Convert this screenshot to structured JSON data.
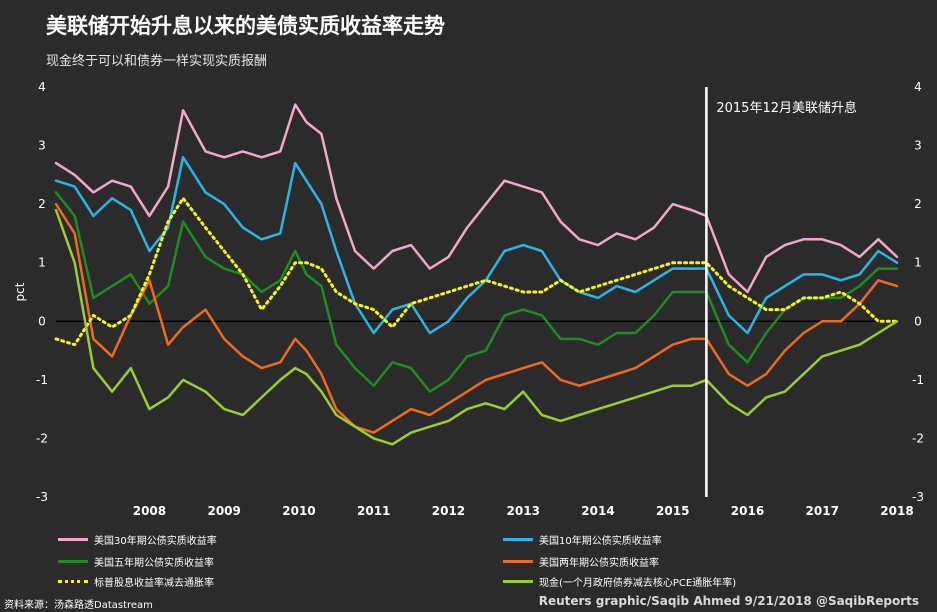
{
  "header": {
    "title": "美联储开始升息以来的美债实质收益率走势",
    "subtitle": "现金终于可以和债券一样实现实质报酬"
  },
  "footer": {
    "source": "资料来源：汤森路透Datastream",
    "credit": "Reuters graphic/Saqib Ahmed 9/21/2018 @SaqibReports"
  },
  "colors": {
    "background": "#2b2b2b",
    "zero_line": "#000000",
    "annotation_line": "#ffffff"
  },
  "chart_data": {
    "type": "line",
    "title": "美联储开始升息以来的美债实质收益率走势",
    "xlabel": "",
    "ylabel": "pct",
    "ylim": [
      -3,
      4
    ],
    "xlim": [
      2007.25,
      2018.5
    ],
    "y_ticks": [
      "4",
      "3",
      "2",
      "1",
      "0",
      "-1",
      "-2",
      "-3"
    ],
    "x_ticks": [
      "2008",
      "2009",
      "2010",
      "2011",
      "2012",
      "2013",
      "2014",
      "2015",
      "2016",
      "2017",
      "2018"
    ],
    "grid": false,
    "legend_position": "bottom",
    "annotation": {
      "x": 2015.95,
      "label": "2015年12月美联储升息"
    },
    "series": [
      {
        "name": "美国30年期公债实质收益率",
        "color": "#f4a6c8",
        "style": "solid",
        "x": [
          2007.25,
          2007.5,
          2007.75,
          2008.0,
          2008.25,
          2008.5,
          2008.75,
          2008.95,
          2009.25,
          2009.5,
          2009.75,
          2010.0,
          2010.25,
          2010.45,
          2010.6,
          2010.8,
          2011.0,
          2011.25,
          2011.5,
          2011.75,
          2012.0,
          2012.25,
          2012.5,
          2012.75,
          2013.0,
          2013.25,
          2013.5,
          2013.75,
          2014.0,
          2014.25,
          2014.5,
          2014.75,
          2015.0,
          2015.25,
          2015.5,
          2015.75,
          2015.95,
          2016.25,
          2016.5,
          2016.75,
          2017.0,
          2017.25,
          2017.5,
          2017.75,
          2018.0,
          2018.25,
          2018.5
        ],
        "y": [
          2.7,
          2.5,
          2.2,
          2.4,
          2.3,
          1.8,
          2.3,
          3.6,
          2.9,
          2.8,
          2.9,
          2.8,
          2.9,
          3.7,
          3.4,
          3.2,
          2.1,
          1.2,
          0.9,
          1.2,
          1.3,
          0.9,
          1.1,
          1.6,
          2.0,
          2.4,
          2.3,
          2.2,
          1.7,
          1.4,
          1.3,
          1.5,
          1.4,
          1.6,
          2.0,
          1.9,
          1.8,
          0.8,
          0.5,
          1.1,
          1.3,
          1.4,
          1.4,
          1.3,
          1.1,
          1.4,
          1.1
        ]
      },
      {
        "name": "美国10年期公债实质收益率",
        "color": "#29b6e6",
        "style": "solid",
        "x": [
          2007.25,
          2007.5,
          2007.75,
          2008.0,
          2008.25,
          2008.5,
          2008.75,
          2008.95,
          2009.25,
          2009.5,
          2009.75,
          2010.0,
          2010.25,
          2010.45,
          2010.6,
          2010.8,
          2011.0,
          2011.25,
          2011.5,
          2011.75,
          2012.0,
          2012.25,
          2012.5,
          2012.75,
          2013.0,
          2013.25,
          2013.5,
          2013.75,
          2014.0,
          2014.25,
          2014.5,
          2014.75,
          2015.0,
          2015.25,
          2015.5,
          2015.75,
          2015.95,
          2016.25,
          2016.5,
          2016.75,
          2017.0,
          2017.25,
          2017.5,
          2017.75,
          2018.0,
          2018.25,
          2018.5
        ],
        "y": [
          2.4,
          2.3,
          1.8,
          2.1,
          1.9,
          1.2,
          1.6,
          2.8,
          2.2,
          2.0,
          1.6,
          1.4,
          1.5,
          2.7,
          2.4,
          2.0,
          1.2,
          0.3,
          -0.2,
          0.2,
          0.3,
          -0.2,
          0.0,
          0.4,
          0.7,
          1.2,
          1.3,
          1.2,
          0.7,
          0.5,
          0.4,
          0.6,
          0.5,
          0.7,
          0.9,
          0.9,
          0.9,
          0.1,
          -0.2,
          0.4,
          0.6,
          0.8,
          0.8,
          0.7,
          0.8,
          1.2,
          1.0
        ]
      },
      {
        "name": "美国五年期公债实质收益率",
        "color": "#1e8c1e",
        "style": "solid",
        "x": [
          2007.25,
          2007.5,
          2007.75,
          2008.0,
          2008.25,
          2008.5,
          2008.75,
          2008.95,
          2009.25,
          2009.5,
          2009.75,
          2010.0,
          2010.25,
          2010.45,
          2010.6,
          2010.8,
          2011.0,
          2011.25,
          2011.5,
          2011.75,
          2012.0,
          2012.25,
          2012.5,
          2012.75,
          2013.0,
          2013.25,
          2013.5,
          2013.75,
          2014.0,
          2014.25,
          2014.5,
          2014.75,
          2015.0,
          2015.25,
          2015.5,
          2015.75,
          2015.95,
          2016.25,
          2016.5,
          2016.75,
          2017.0,
          2017.25,
          2017.5,
          2017.75,
          2018.0,
          2018.25,
          2018.5
        ],
        "y": [
          2.2,
          1.8,
          0.4,
          0.6,
          0.8,
          0.3,
          0.6,
          1.7,
          1.1,
          0.9,
          0.8,
          0.5,
          0.7,
          1.2,
          0.8,
          0.6,
          -0.4,
          -0.8,
          -1.1,
          -0.7,
          -0.8,
          -1.2,
          -1.0,
          -0.6,
          -0.5,
          0.1,
          0.2,
          0.1,
          -0.3,
          -0.3,
          -0.4,
          -0.2,
          -0.2,
          0.1,
          0.5,
          0.5,
          0.5,
          -0.4,
          -0.7,
          -0.2,
          0.2,
          0.4,
          0.4,
          0.4,
          0.6,
          0.9,
          0.9
        ]
      },
      {
        "name": "美国两年期公债实质收益率",
        "color": "#f06a1e",
        "style": "solid",
        "x": [
          2007.25,
          2007.5,
          2007.75,
          2008.0,
          2008.25,
          2008.5,
          2008.75,
          2008.95,
          2009.25,
          2009.5,
          2009.75,
          2010.0,
          2010.25,
          2010.45,
          2010.6,
          2010.8,
          2011.0,
          2011.25,
          2011.5,
          2011.75,
          2012.0,
          2012.25,
          2012.5,
          2012.75,
          2013.0,
          2013.25,
          2013.5,
          2013.75,
          2014.0,
          2014.25,
          2014.5,
          2014.75,
          2015.0,
          2015.25,
          2015.5,
          2015.75,
          2015.95,
          2016.25,
          2016.5,
          2016.75,
          2017.0,
          2017.25,
          2017.5,
          2017.75,
          2018.0,
          2018.25,
          2018.5
        ],
        "y": [
          2.0,
          1.5,
          -0.3,
          -0.6,
          0.1,
          0.7,
          -0.4,
          -0.1,
          0.2,
          -0.3,
          -0.6,
          -0.8,
          -0.7,
          -0.3,
          -0.5,
          -0.9,
          -1.5,
          -1.8,
          -1.9,
          -1.7,
          -1.5,
          -1.6,
          -1.4,
          -1.2,
          -1.0,
          -0.9,
          -0.8,
          -0.7,
          -1.0,
          -1.1,
          -1.0,
          -0.9,
          -0.8,
          -0.6,
          -0.4,
          -0.3,
          -0.3,
          -0.9,
          -1.1,
          -0.9,
          -0.5,
          -0.2,
          0.0,
          0.0,
          0.3,
          0.7,
          0.6
        ]
      },
      {
        "name": "标普股息收益率减去通胀率",
        "color": "#f5f51e",
        "style": "dotted",
        "x": [
          2007.25,
          2007.5,
          2007.75,
          2008.0,
          2008.25,
          2008.5,
          2008.75,
          2008.95,
          2009.25,
          2009.5,
          2009.75,
          2010.0,
          2010.25,
          2010.45,
          2010.6,
          2010.8,
          2011.0,
          2011.25,
          2011.5,
          2011.75,
          2012.0,
          2012.25,
          2012.5,
          2012.75,
          2013.0,
          2013.25,
          2013.5,
          2013.75,
          2014.0,
          2014.25,
          2014.5,
          2014.75,
          2015.0,
          2015.25,
          2015.5,
          2015.75,
          2015.95,
          2016.25,
          2016.5,
          2016.75,
          2017.0,
          2017.25,
          2017.5,
          2017.75,
          2018.0,
          2018.25,
          2018.5
        ],
        "y": [
          -0.3,
          -0.4,
          0.1,
          -0.1,
          0.1,
          0.8,
          1.7,
          2.1,
          1.6,
          1.2,
          0.8,
          0.2,
          0.6,
          1.0,
          1.0,
          0.9,
          0.5,
          0.3,
          0.2,
          -0.1,
          0.3,
          0.4,
          0.5,
          0.6,
          0.7,
          0.6,
          0.5,
          0.5,
          0.7,
          0.5,
          0.6,
          0.7,
          0.8,
          0.9,
          1.0,
          1.0,
          1.0,
          0.6,
          0.4,
          0.2,
          0.2,
          0.4,
          0.4,
          0.5,
          0.3,
          0.0,
          0.0
        ]
      },
      {
        "name": "现金(一个月政府债券减去核心PCE通胀年率)",
        "color": "#9acd32",
        "style": "solid",
        "x": [
          2007.25,
          2007.5,
          2007.75,
          2008.0,
          2008.25,
          2008.5,
          2008.75,
          2008.95,
          2009.25,
          2009.5,
          2009.75,
          2010.0,
          2010.25,
          2010.45,
          2010.6,
          2010.8,
          2011.0,
          2011.25,
          2011.5,
          2011.75,
          2012.0,
          2012.25,
          2012.5,
          2012.75,
          2013.0,
          2013.25,
          2013.5,
          2013.75,
          2014.0,
          2014.25,
          2014.5,
          2014.75,
          2015.0,
          2015.25,
          2015.5,
          2015.75,
          2015.95,
          2016.25,
          2016.5,
          2016.75,
          2017.0,
          2017.25,
          2017.5,
          2017.75,
          2018.0,
          2018.25,
          2018.5
        ],
        "y": [
          1.9,
          1.0,
          -0.8,
          -1.2,
          -0.8,
          -1.5,
          -1.3,
          -1.0,
          -1.2,
          -1.5,
          -1.6,
          -1.3,
          -1.0,
          -0.8,
          -0.9,
          -1.2,
          -1.6,
          -1.8,
          -2.0,
          -2.1,
          -1.9,
          -1.8,
          -1.7,
          -1.5,
          -1.4,
          -1.5,
          -1.2,
          -1.6,
          -1.7,
          -1.6,
          -1.5,
          -1.4,
          -1.3,
          -1.2,
          -1.1,
          -1.1,
          -1.0,
          -1.4,
          -1.6,
          -1.3,
          -1.2,
          -0.9,
          -0.6,
          -0.5,
          -0.4,
          -0.2,
          0.0
        ]
      }
    ]
  }
}
